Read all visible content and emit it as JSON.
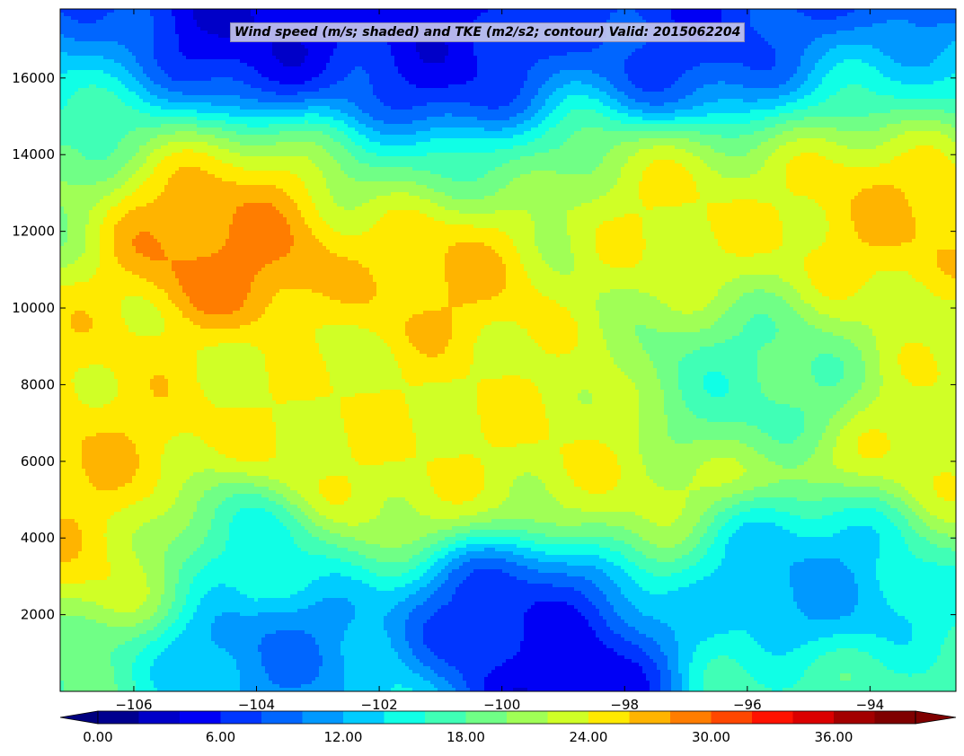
{
  "chart_data": {
    "type": "filled-contour",
    "title": "Wind speed (m/s; shaded) and TKE (m2/s2; contour) Valid: 2015062204",
    "xlabel": "",
    "ylabel": "",
    "xlim": [
      -107.2,
      -92.6
    ],
    "ylim": [
      0,
      17800
    ],
    "x_ticks": [
      -106,
      -104,
      -102,
      -100,
      -98,
      -96,
      -94
    ],
    "x_tick_labels": [
      "−106",
      "−104",
      "−102",
      "−100",
      "−98",
      "−96",
      "−94"
    ],
    "y_ticks": [
      2000,
      4000,
      6000,
      8000,
      10000,
      12000,
      14000,
      16000
    ],
    "y_tick_labels": [
      "2000",
      "4000",
      "6000",
      "8000",
      "10000",
      "12000",
      "14000",
      "16000"
    ],
    "colorbar": {
      "orientation": "horizontal",
      "extend": "both",
      "levels": [
        0,
        2,
        4,
        6,
        8,
        10,
        12,
        14,
        16,
        18,
        20,
        22,
        24,
        26,
        28,
        30,
        32,
        34,
        36,
        38,
        40
      ],
      "tick_values": [
        0,
        6,
        12,
        18,
        24,
        30,
        36
      ],
      "tick_labels": [
        "0.00",
        "6.00",
        "12.00",
        "18.00",
        "24.00",
        "30.00",
        "36.00"
      ],
      "colors": [
        "#00008f",
        "#0000c8",
        "#0000f5",
        "#0036ff",
        "#0066ff",
        "#0099ff",
        "#00ccff",
        "#10ffe6",
        "#40ffb6",
        "#70ff86",
        "#a0ff56",
        "#d0ff26",
        "#ffea00",
        "#ffb400",
        "#ff7d00",
        "#ff4700",
        "#ff1200",
        "#db0000",
        "#a30000",
        "#7f0000"
      ],
      "under_color": "#00007f",
      "over_color": "#7f0000"
    },
    "wind_speed_features": [
      {
        "lon": -104.5,
        "alt": 11500,
        "speed": 31
      },
      {
        "lon": -104.6,
        "alt": 12400,
        "speed": 27
      },
      {
        "lon": -106.6,
        "alt": 6000,
        "speed": 26
      },
      {
        "lon": -106.5,
        "alt": 3800,
        "speed": 26
      },
      {
        "lon": -106.8,
        "alt": 9300,
        "speed": 25
      },
      {
        "lon": -101.0,
        "alt": 10800,
        "speed": 27
      },
      {
        "lon": -97.2,
        "alt": 12500,
        "speed": 25
      },
      {
        "lon": -93.2,
        "alt": 12300,
        "speed": 27
      },
      {
        "lon": -94.2,
        "alt": 12600,
        "speed": 26
      },
      {
        "lon": -99.8,
        "alt": 1900,
        "speed": 5
      },
      {
        "lon": -99.0,
        "alt": 200,
        "speed": 2
      },
      {
        "lon": -104.0,
        "alt": 17200,
        "speed": 3
      },
      {
        "lon": -101.0,
        "alt": 16500,
        "speed": 4
      },
      {
        "lon": -97.0,
        "alt": 17000,
        "speed": 6
      },
      {
        "lon": -103.7,
        "alt": 900,
        "speed": 9
      },
      {
        "lon": -104.5,
        "alt": 3700,
        "speed": 14
      },
      {
        "lon": -95.0,
        "alt": 3200,
        "speed": 11
      },
      {
        "lon": -96.0,
        "alt": 8000,
        "speed": 16
      },
      {
        "lon": -102.5,
        "alt": 6300,
        "speed": 24
      }
    ]
  }
}
